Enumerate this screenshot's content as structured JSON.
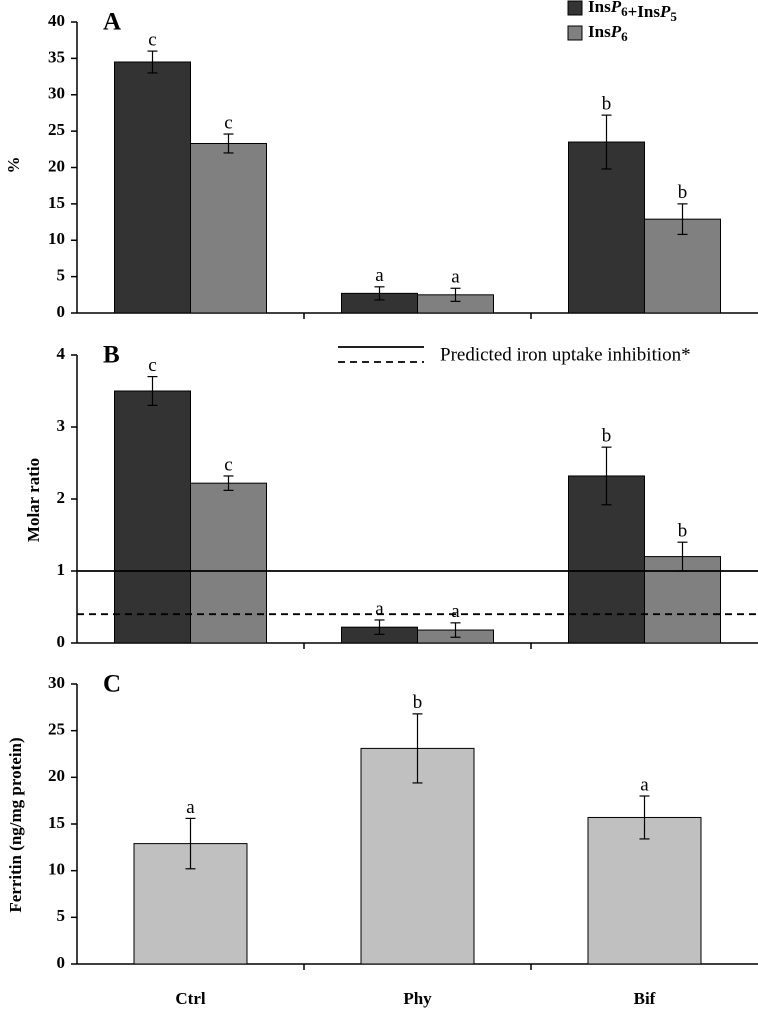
{
  "chart_data": [
    {
      "type": "bar",
      "title": "A",
      "y_label": "%",
      "ylim": [
        0,
        40
      ],
      "yticks": [
        0,
        5,
        10,
        15,
        20,
        25,
        30,
        35,
        40
      ],
      "legend_position": "upper right",
      "series": [
        {
          "name": "InsP6+InsP5",
          "color": "#333333",
          "values": [
            34.5,
            2.7,
            23.5
          ],
          "errors": [
            1.5,
            0.9,
            3.7
          ],
          "letters": [
            "c",
            "a",
            "b"
          ]
        },
        {
          "name": "InsP6",
          "color": "#808080",
          "values": [
            23.3,
            2.5,
            12.9
          ],
          "errors": [
            1.3,
            0.9,
            2.1
          ],
          "letters": [
            "c",
            "a",
            "b"
          ]
        }
      ]
    },
    {
      "type": "bar",
      "title": "B",
      "y_label": "Molar ratio",
      "ylim": [
        0,
        4
      ],
      "yticks": [
        0,
        1,
        2,
        3,
        4
      ],
      "series": [
        {
          "name": null,
          "color": "#333333",
          "values": [
            3.5,
            0.22,
            2.32
          ],
          "errors": [
            0.2,
            0.1,
            0.4
          ],
          "letters": [
            "c",
            "a",
            "b"
          ]
        },
        {
          "name": null,
          "color": "#808080",
          "values": [
            2.22,
            0.18,
            1.2
          ],
          "errors": [
            0.1,
            0.1,
            0.2
          ],
          "letters": [
            "c",
            "a",
            "b"
          ]
        }
      ],
      "reference_lines": [
        {
          "value": 1,
          "style": "solid"
        },
        {
          "value": 0.4,
          "style": "dashed"
        }
      ],
      "reference_label": "Predicted iron uptake inhibition*"
    },
    {
      "type": "bar",
      "title": "C",
      "y_label": "Ferritin (ng/mg protein)",
      "ylim": [
        0,
        30
      ],
      "yticks": [
        0,
        5,
        10,
        15,
        20,
        25,
        30
      ],
      "categories": [
        "Ctrl",
        "Phy",
        "Bif"
      ],
      "series": [
        {
          "name": null,
          "color": "#c0c0c0",
          "values": [
            12.9,
            23.1,
            15.7
          ],
          "errors": [
            2.7,
            3.7,
            2.3
          ],
          "letters": [
            "a",
            "b",
            "a"
          ]
        }
      ]
    }
  ]
}
